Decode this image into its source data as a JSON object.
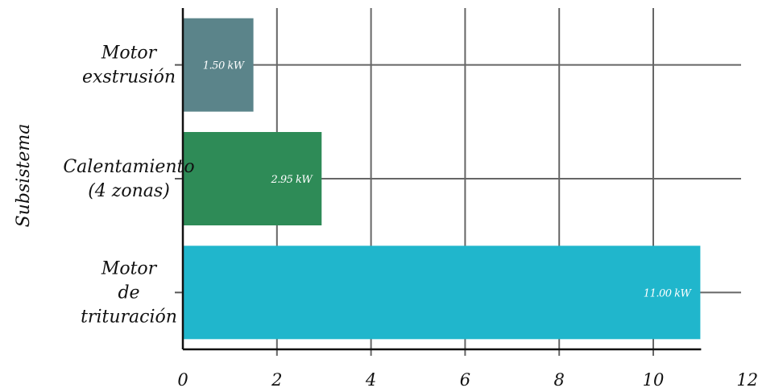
{
  "chart_data": {
    "type": "bar",
    "orientation": "horizontal",
    "ylabel": "Subsistema",
    "xlabel": "",
    "xlim": [
      0,
      12
    ],
    "xticks": [
      0,
      2,
      4,
      6,
      8,
      10,
      12
    ],
    "grid": true,
    "categories": [
      [
        "Motor",
        "exstrusión"
      ],
      [
        "Calentamiento",
        "(4 zonas)"
      ],
      [
        "Motor",
        "de",
        "trituración"
      ]
    ],
    "values": [
      1.5,
      2.95,
      11.0
    ],
    "value_labels": [
      "1.50 kW",
      "2.95 kW",
      "11.00 kW"
    ],
    "colors": [
      "#5b848a",
      "#2e8b57",
      "#20b6cc"
    ]
  }
}
